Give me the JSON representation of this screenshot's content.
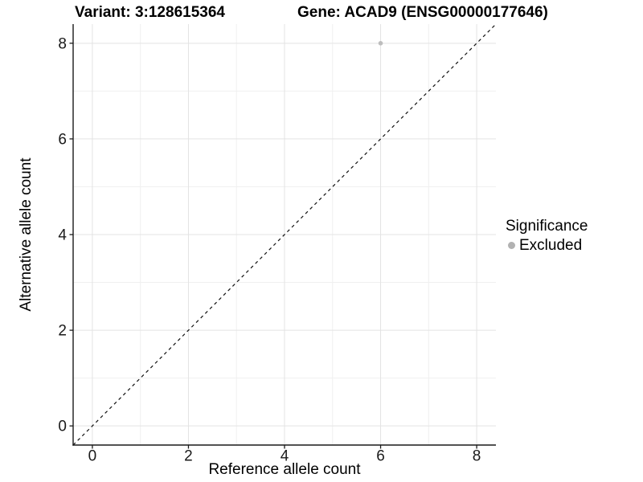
{
  "chart_data": {
    "type": "scatter",
    "title_left": "Variant: 3:128615364",
    "title_right": "Gene: ACAD9 (ENSG00000177646)",
    "xlabel": "Reference allele count",
    "ylabel": "Alternative allele count",
    "xlim": [
      -0.4,
      8.4
    ],
    "ylim": [
      -0.4,
      8.4
    ],
    "x_ticks": [
      0,
      2,
      4,
      6,
      8
    ],
    "y_ticks": [
      0,
      2,
      4,
      6,
      8
    ],
    "x_minor_ticks": [
      1,
      3,
      5,
      7
    ],
    "y_minor_ticks": [
      1,
      3,
      5,
      7
    ],
    "grid": true,
    "points": [
      {
        "x": 6,
        "y": 8,
        "series": "Excluded"
      }
    ],
    "identity_line": {
      "type": "dashed",
      "slope": 1,
      "intercept": 0
    },
    "legend": {
      "title": "Significance",
      "position": "right",
      "items": [
        {
          "label": "Excluded",
          "marker": "circle",
          "color": "#b2b2b2"
        }
      ]
    },
    "colors": {
      "point": "#bdbdbd",
      "grid_major": "#e3e3e3",
      "grid_minor": "#f0f0f0",
      "axis_line": "#1a1a1a",
      "tick_label": "#1a1a1a",
      "identity_line": "#111111"
    }
  }
}
